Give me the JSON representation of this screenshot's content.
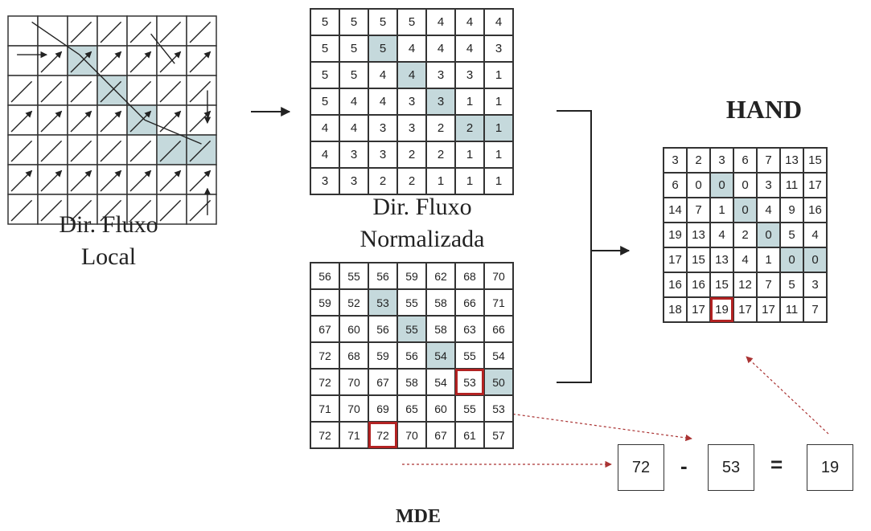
{
  "labels": {
    "local": "Dir. Fluxo\nLocal",
    "normalized": "Dir. Fluxo\nNormalizada",
    "hand": "HAND",
    "mde": "MDE"
  },
  "grids": {
    "normalized": [
      [
        "5",
        "5",
        "5",
        "5",
        "4",
        "4",
        "4"
      ],
      [
        "5",
        "5",
        "5",
        "4",
        "4",
        "4",
        "3"
      ],
      [
        "5",
        "5",
        "4",
        "4",
        "3",
        "3",
        "1"
      ],
      [
        "5",
        "4",
        "4",
        "3",
        "3",
        "1",
        "1"
      ],
      [
        "4",
        "4",
        "3",
        "3",
        "2",
        "2",
        "1"
      ],
      [
        "4",
        "3",
        "3",
        "2",
        "2",
        "1",
        "1"
      ],
      [
        "3",
        "3",
        "2",
        "2",
        "1",
        "1",
        "1"
      ]
    ],
    "mde": [
      [
        "56",
        "55",
        "56",
        "59",
        "62",
        "68",
        "70"
      ],
      [
        "59",
        "52",
        "53",
        "55",
        "58",
        "66",
        "71"
      ],
      [
        "67",
        "60",
        "56",
        "55",
        "58",
        "63",
        "66"
      ],
      [
        "72",
        "68",
        "59",
        "56",
        "54",
        "55",
        "54"
      ],
      [
        "72",
        "70",
        "67",
        "58",
        "54",
        "53",
        "50"
      ],
      [
        "71",
        "70",
        "69",
        "65",
        "60",
        "55",
        "53"
      ],
      [
        "72",
        "71",
        "72",
        "70",
        "67",
        "61",
        "57"
      ]
    ],
    "hand": [
      [
        "3",
        "2",
        "3",
        "6",
        "7",
        "13",
        "15"
      ],
      [
        "6",
        "0",
        "0",
        "0",
        "3",
        "11",
        "17"
      ],
      [
        "14",
        "7",
        "1",
        "0",
        "4",
        "9",
        "16"
      ],
      [
        "19",
        "13",
        "4",
        "2",
        "0",
        "5",
        "4"
      ],
      [
        "17",
        "15",
        "13",
        "4",
        "1",
        "0",
        "0"
      ],
      [
        "16",
        "16",
        "15",
        "12",
        "7",
        "5",
        "3"
      ],
      [
        "18",
        "17",
        "19",
        "17",
        "17",
        "11",
        "7"
      ]
    ]
  },
  "highlights": {
    "normalized": [
      [
        1,
        2
      ],
      [
        2,
        3
      ],
      [
        3,
        4
      ],
      [
        4,
        5
      ],
      [
        4,
        6
      ]
    ],
    "mde": [
      [
        1,
        2
      ],
      [
        2,
        3
      ],
      [
        3,
        4
      ],
      [
        4,
        6
      ]
    ],
    "hand": [
      [
        1,
        2
      ],
      [
        2,
        3
      ],
      [
        3,
        4
      ],
      [
        4,
        5
      ],
      [
        4,
        6
      ]
    ]
  },
  "red_cells": {
    "mde": [
      [
        4,
        5
      ],
      [
        6,
        2
      ]
    ],
    "hand": [
      [
        6,
        2
      ]
    ]
  },
  "equation": {
    "a": "72",
    "minus": "-",
    "b": "53",
    "equals": "=",
    "result": "19"
  },
  "colors": {
    "highlight": "#c5d9dc",
    "red": "#b22222",
    "line": "#333333"
  }
}
